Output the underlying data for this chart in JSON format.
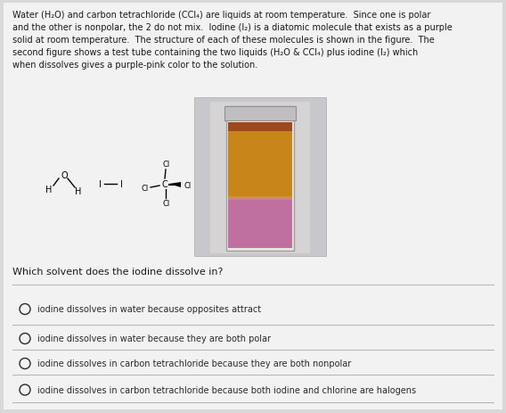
{
  "bg_color": "#d8d8d8",
  "content_bg": "#f0f0f0",
  "title_text": "Water (H₂O) and carbon tetrachloride (CCl₄) are liquids at room temperature.  Since one is polar\nand the other is nonpolar, the 2 do not mix.  Iodine (I₂) is a diatomic molecule that exists as a purple\nsolid at room temperature.  The structure of each of these molecules is shown in the figure.  The\nsecond figure shows a test tube containing the two liquids (H₂O & CCl₄) plus iodine (I₂) which\nwhen dissolves gives a purple-pink color to the solution.",
  "question": "Which solvent does the iodine dissolve in?",
  "options": [
    "iodine dissolves in water because opposites attract",
    "iodine dissolves in water because they are both polar",
    "iodine dissolves in carbon tetrachloride because they are both nonpolar",
    "iodine dissolves in carbon tetrachloride because both iodine and chlorine are halogens"
  ],
  "orange_color": "#c8861a",
  "purple_color": "#c070a0",
  "orange_top_color": "#a03020",
  "tube_gray": "#c8c8cc",
  "tube_inner_gray": "#d8d5d5",
  "text_color": "#1a1a1a",
  "option_text_color": "#2a2a2a",
  "line_color": "#b8b8b8"
}
